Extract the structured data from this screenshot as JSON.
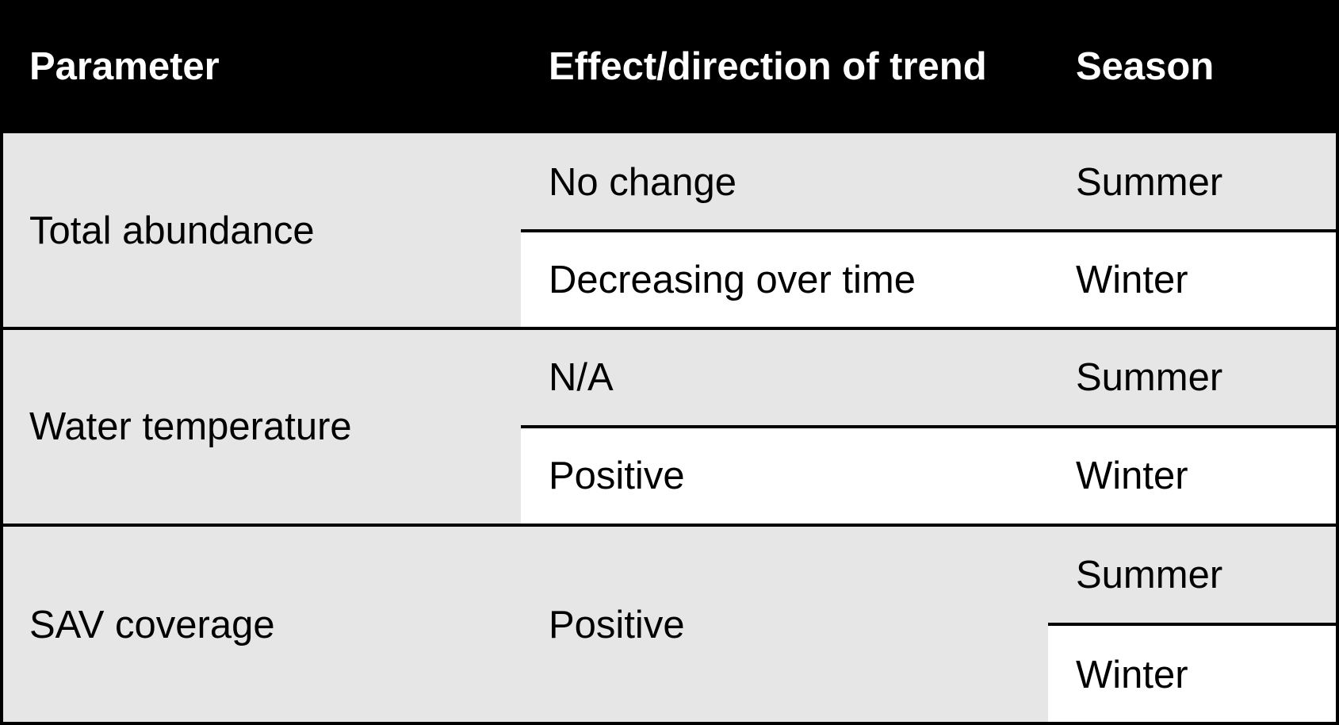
{
  "table": {
    "headers": [
      "Parameter",
      "Effect/direction of trend",
      "Season"
    ],
    "rows": [
      {
        "parameter": "Total abundance",
        "entries": [
          {
            "effect": "No change",
            "season": "Summer"
          },
          {
            "effect": "Decreasing over time",
            "season": "Winter"
          }
        ]
      },
      {
        "parameter": "Water temperature",
        "entries": [
          {
            "effect": "N/A",
            "season": "Summer"
          },
          {
            "effect": "Positive",
            "season": "Winter"
          }
        ]
      },
      {
        "parameter": "SAV coverage",
        "effect": "Positive",
        "seasons": [
          "Summer",
          "Winter"
        ]
      }
    ]
  },
  "colors": {
    "header_bg": "#000000",
    "header_text": "#ffffff",
    "shade": "#e6e6e6",
    "plain": "#ffffff",
    "border": "#000000"
  }
}
